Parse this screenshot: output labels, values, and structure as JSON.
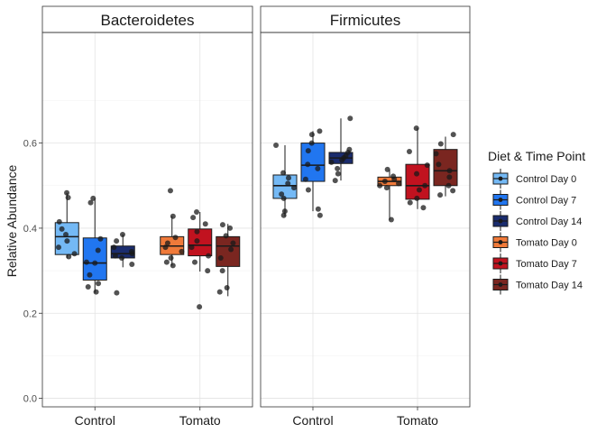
{
  "chart_data": {
    "type": "boxplot",
    "ylabel": "Relative Abundance",
    "ylim": [
      -0.02,
      0.86
    ],
    "yticks": [
      "0.0",
      "0.2",
      "0.4",
      "0.6"
    ],
    "ytick_values": [
      0,
      0.2,
      0.4,
      0.6
    ],
    "categories": [
      "Control",
      "Tomato"
    ],
    "grid": true,
    "legend": {
      "title": "Diet & Time Point",
      "placement": "right",
      "entries": [
        {
          "name": "Control Day 0",
          "color": "#74B9F5"
        },
        {
          "name": "Control Day 7",
          "color": "#2176F0"
        },
        {
          "name": "Control Day 14",
          "color": "#1A2C6E"
        },
        {
          "name": "Tomato Day 0",
          "color": "#F07A3A"
        },
        {
          "name": "Tomato Day 7",
          "color": "#C1121F"
        },
        {
          "name": "Tomato Day 14",
          "color": "#7A2620"
        }
      ]
    },
    "panels": [
      {
        "title": "Bacteroidetes",
        "groups": [
          {
            "category": "Control",
            "series": "Control Day 0",
            "stats": {
              "min": 0.33,
              "q1": 0.338,
              "median": 0.38,
              "q3": 0.413,
              "max": 0.483
            },
            "points": [
              0.483,
              0.472,
              0.415,
              0.398,
              0.385,
              0.37,
              0.355,
              0.34,
              0.333
            ]
          },
          {
            "category": "Control",
            "series": "Control Day 7",
            "stats": {
              "min": 0.248,
              "q1": 0.278,
              "median": 0.318,
              "q3": 0.377,
              "max": 0.47
            },
            "points": [
              0.47,
              0.46,
              0.375,
              0.348,
              0.32,
              0.318,
              0.29,
              0.27,
              0.262,
              0.25
            ]
          },
          {
            "category": "Control",
            "series": "Control Day 14",
            "stats": {
              "min": 0.308,
              "q1": 0.33,
              "median": 0.34,
              "q3": 0.358,
              "max": 0.385
            },
            "points": [
              0.385,
              0.37,
              0.355,
              0.345,
              0.34,
              0.335,
              0.33,
              0.315,
              0.248
            ]
          },
          {
            "category": "Tomato",
            "series": "Tomato Day 0",
            "stats": {
              "min": 0.312,
              "q1": 0.338,
              "median": 0.358,
              "q3": 0.38,
              "max": 0.428
            },
            "points": [
              0.488,
              0.428,
              0.378,
              0.365,
              0.355,
              0.345,
              0.33,
              0.32,
              0.312
            ]
          },
          {
            "category": "Tomato",
            "series": "Tomato Day 7",
            "stats": {
              "min": 0.298,
              "q1": 0.335,
              "median": 0.36,
              "q3": 0.398,
              "max": 0.438
            },
            "points": [
              0.438,
              0.425,
              0.41,
              0.392,
              0.37,
              0.355,
              0.335,
              0.32,
              0.3,
              0.215
            ]
          },
          {
            "category": "Tomato",
            "series": "Tomato Day 14",
            "stats": {
              "min": 0.24,
              "q1": 0.31,
              "median": 0.358,
              "q3": 0.38,
              "max": 0.41
            },
            "points": [
              0.408,
              0.4,
              0.382,
              0.365,
              0.35,
              0.33,
              0.3,
              0.26,
              0.25
            ]
          }
        ]
      },
      {
        "title": "Firmicutes",
        "groups": [
          {
            "category": "Control",
            "series": "Control Day 0",
            "stats": {
              "min": 0.428,
              "q1": 0.47,
              "median": 0.5,
              "q3": 0.525,
              "max": 0.595
            },
            "points": [
              0.595,
              0.53,
              0.518,
              0.505,
              0.495,
              0.48,
              0.47,
              0.44,
              0.43
            ]
          },
          {
            "category": "Control",
            "series": "Control Day 7",
            "stats": {
              "min": 0.44,
              "q1": 0.51,
              "median": 0.548,
              "q3": 0.6,
              "max": 0.628
            },
            "points": [
              0.628,
              0.62,
              0.6,
              0.582,
              0.55,
              0.54,
              0.515,
              0.49,
              0.445,
              0.43
            ]
          },
          {
            "category": "Control",
            "series": "Control Day 14",
            "stats": {
              "min": 0.512,
              "q1": 0.552,
              "median": 0.565,
              "q3": 0.578,
              "max": 0.658
            },
            "points": [
              0.658,
              0.585,
              0.578,
              0.57,
              0.565,
              0.56,
              0.555,
              0.54,
              0.528,
              0.512
            ]
          },
          {
            "category": "Tomato",
            "series": "Tomato Day 0",
            "stats": {
              "min": 0.42,
              "q1": 0.5,
              "median": 0.51,
              "q3": 0.52,
              "max": 0.538
            },
            "points": [
              0.538,
              0.522,
              0.515,
              0.51,
              0.505,
              0.5,
              0.495,
              0.42
            ]
          },
          {
            "category": "Tomato",
            "series": "Tomato Day 7",
            "stats": {
              "min": 0.445,
              "q1": 0.468,
              "median": 0.5,
              "q3": 0.55,
              "max": 0.635
            },
            "points": [
              0.635,
              0.58,
              0.548,
              0.528,
              0.5,
              0.49,
              0.47,
              0.46,
              0.448
            ]
          },
          {
            "category": "Tomato",
            "series": "Tomato Day 14",
            "stats": {
              "min": 0.475,
              "q1": 0.5,
              "median": 0.535,
              "q3": 0.585,
              "max": 0.615
            },
            "points": [
              0.62,
              0.598,
              0.575,
              0.55,
              0.535,
              0.52,
              0.5,
              0.488,
              0.478
            ]
          }
        ]
      }
    ]
  }
}
